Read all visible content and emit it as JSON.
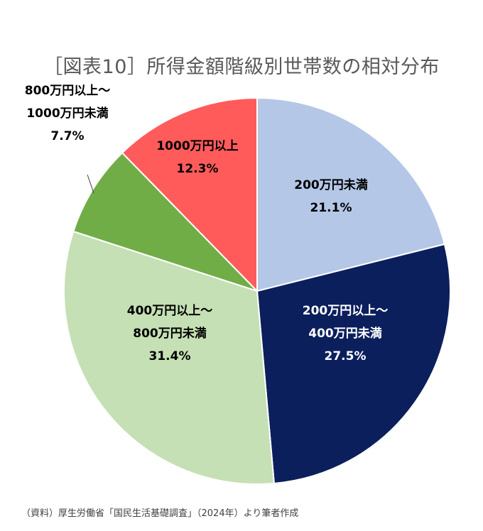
{
  "chart_data": {
    "type": "pie",
    "title": "［図表10］所得金額階級別世帯数の相対分布",
    "slices": [
      {
        "label_lines": [
          "200万円未満"
        ],
        "percent_label": "21.1%",
        "value": 21.1,
        "color": "#b4c7e7",
        "text_color": "#000000"
      },
      {
        "label_lines": [
          "200万円以上～",
          "400万円未満"
        ],
        "percent_label": "27.5%",
        "value": 27.5,
        "color": "#0b1f5c",
        "text_color": "#ffffff"
      },
      {
        "label_lines": [
          "400万円以上～",
          "800万円未満"
        ],
        "percent_label": "31.4%",
        "value": 31.4,
        "color": "#c5e0b4",
        "text_color": "#000000"
      },
      {
        "label_lines": [
          "800万円以上～",
          "1000万円未満"
        ],
        "percent_label": "7.7%",
        "value": 7.7,
        "color": "#70ad47",
        "text_color": "#000000"
      },
      {
        "label_lines": [
          "1000万円以上"
        ],
        "percent_label": "12.3%",
        "value": 12.3,
        "color": "#ff5b5b",
        "text_color": "#000000"
      }
    ],
    "source": "（資料）厚生労働省「国民生活基礎調査」（2024年）より筆者作成"
  }
}
